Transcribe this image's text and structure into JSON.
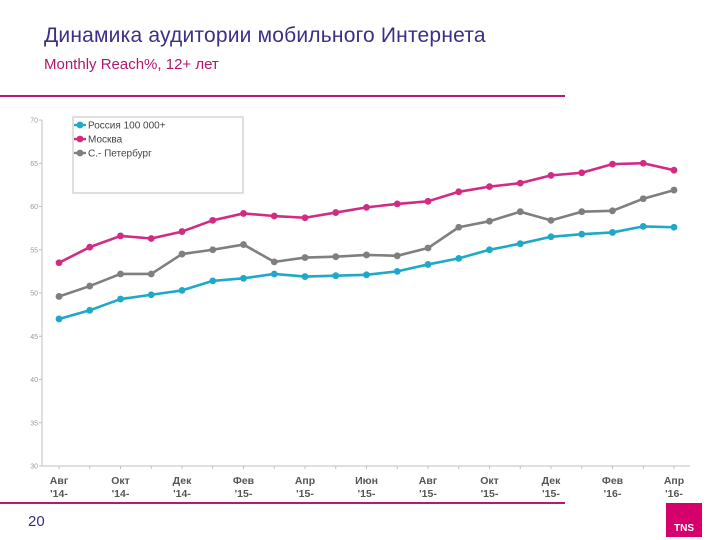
{
  "page": {
    "title": "Динамика аудитории мобильного Интернета",
    "subtitle": "Monthly Reach%, 12+ лет",
    "page_number": "20",
    "logo_text": "TNS",
    "accent_color": "#b41a6f",
    "title_color": "#3d2f86"
  },
  "chart_data": {
    "type": "line",
    "title": "",
    "xlabel": "",
    "ylabel": "",
    "ylim": [
      30,
      70
    ],
    "yticks": [
      30,
      35,
      40,
      45,
      50,
      55,
      60,
      65,
      70
    ],
    "grid": false,
    "legend_position": "top-left",
    "x": [
      "Авг '14",
      "Сен '14",
      "Окт '14",
      "Ноя '14",
      "Дек '14",
      "Янв '15",
      "Фев '15",
      "Мар '15",
      "Апр '15",
      "Май '15",
      "Июн '15",
      "Июл '15",
      "Авг '15",
      "Сен '15",
      "Окт '15",
      "Ноя '15",
      "Дек '15",
      "Янв '16",
      "Фев '16",
      "Мар '16",
      "Апр '16"
    ],
    "x_tick_labels": [
      {
        "index": 0,
        "line1": "Авг",
        "line2": "'14-"
      },
      {
        "index": 2,
        "line1": "Окт",
        "line2": "'14-"
      },
      {
        "index": 4,
        "line1": "Дек",
        "line2": "'14-"
      },
      {
        "index": 6,
        "line1": "Фев",
        "line2": "'15-"
      },
      {
        "index": 8,
        "line1": "Апр",
        "line2": "'15-"
      },
      {
        "index": 10,
        "line1": "Июн",
        "line2": "'15-"
      },
      {
        "index": 12,
        "line1": "Авг",
        "line2": "'15-"
      },
      {
        "index": 14,
        "line1": "Окт",
        "line2": "'15-"
      },
      {
        "index": 16,
        "line1": "Дек",
        "line2": "'15-"
      },
      {
        "index": 18,
        "line1": "Фев",
        "line2": "'16-"
      },
      {
        "index": 20,
        "line1": "Апр",
        "line2": "'16-"
      }
    ],
    "series": [
      {
        "name": "Россия 100 000+",
        "color": "#1fa8c8",
        "values": [
          47.0,
          48.0,
          49.3,
          49.8,
          50.3,
          51.4,
          51.7,
          52.2,
          51.9,
          52.0,
          52.1,
          52.5,
          53.3,
          54.0,
          55.0,
          55.7,
          56.5,
          56.8,
          57.0,
          57.7,
          57.6
        ]
      },
      {
        "name": "Москва",
        "color": "#d12c83",
        "values": [
          53.5,
          55.3,
          56.6,
          56.3,
          57.1,
          58.4,
          59.2,
          58.9,
          58.7,
          59.3,
          59.9,
          60.3,
          60.6,
          61.7,
          62.3,
          62.7,
          63.6,
          63.9,
          64.9,
          65.0,
          64.2
        ]
      },
      {
        "name": "С.- Петербург",
        "color": "#7f7f7f",
        "values": [
          49.6,
          50.8,
          52.2,
          52.2,
          54.5,
          55.0,
          55.6,
          53.6,
          54.1,
          54.2,
          54.4,
          54.3,
          55.2,
          57.6,
          58.3,
          59.4,
          58.4,
          59.4,
          59.5,
          60.9,
          61.9
        ]
      }
    ]
  }
}
